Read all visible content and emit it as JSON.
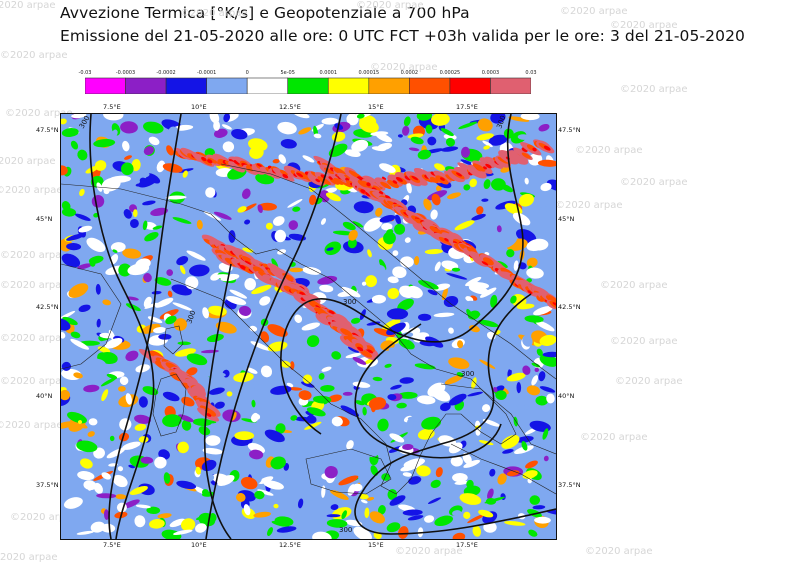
{
  "header": {
    "title": "Avvezione Termica [°K/s] e Geopotenziale a 700 hPa",
    "subtitle": "Emissione del 21-05-2020 alle ore:  0 UTC  FCT +03h  valida per le ore:  3 del 21-05-2020"
  },
  "watermark": "©2020 arpae",
  "legend": {
    "labels": [
      "-0.03",
      "-0.0003",
      "-0.0002",
      "-0.0001",
      "0",
      "5e-05",
      "0.0001",
      "0.00015",
      "0.0002",
      "0.00025",
      "0.0003",
      "0.03"
    ],
    "colors": [
      "#ff00ff",
      "#8c1fc6",
      "#1414e6",
      "#7fa8f0",
      "#ffffff",
      "#00e600",
      "#ffff00",
      "#ffa000",
      "#ff5000",
      "#ff0000",
      "#e06070"
    ]
  },
  "axes": {
    "lon_labels": [
      "7.5°E",
      "10°E",
      "12.5°E",
      "15°E",
      "17.5°E"
    ],
    "lat_labels": [
      "47.5°N",
      "45°N",
      "42.5°N",
      "40°N",
      "37.5°N"
    ]
  },
  "contours": {
    "labels": [
      "300",
      "300",
      "300",
      "300",
      "300",
      "300"
    ]
  }
}
